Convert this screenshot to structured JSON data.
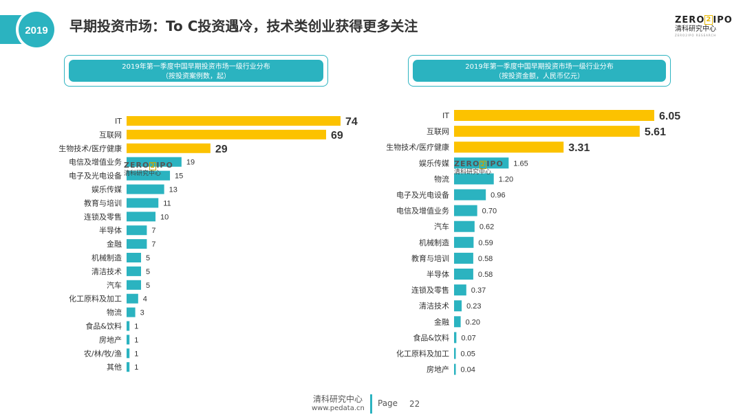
{
  "header": {
    "year": "2019",
    "title": "早期投资市场：To C投资遇冷，技术类创业获得更多关注"
  },
  "logo": {
    "left": "ZERO",
    "mark": "2",
    "right": "IPO",
    "cn": "清科研究中心",
    "en": "ZERO2IPO RESEARCH"
  },
  "watermark": {
    "left": "ZERO",
    "mark": "2",
    "right": "IPO",
    "cn": "清科研究中心"
  },
  "colors": {
    "teal": "#2bb3c0",
    "gold": "#fcc200"
  },
  "chart_data": [
    {
      "type": "bar",
      "orientation": "horizontal",
      "title": "2019年第一季度中国早期投资市场一级行业分布",
      "subtitle": "（按投资案例数，起）",
      "categories": [
        "IT",
        "互联网",
        "生物技术/医疗健康",
        "电信及增值业务",
        "电子及光电设备",
        "娱乐传媒",
        "教育与培训",
        "连锁及零售",
        "半导体",
        "金融",
        "机械制造",
        "清洁技术",
        "汽车",
        "化工原料及加工",
        "物流",
        "食品&饮料",
        "房地产",
        "农/林/牧/渔",
        "其他"
      ],
      "values": [
        74,
        69,
        29,
        19,
        15,
        13,
        11,
        10,
        7,
        7,
        5,
        5,
        5,
        4,
        3,
        1,
        1,
        1,
        1
      ],
      "value_labels": [
        "74",
        "69",
        "29",
        "19",
        "15",
        "13",
        "11",
        "10",
        "7",
        "7",
        "5",
        "5",
        "5",
        "4",
        "3",
        "1",
        "1",
        "1",
        "1"
      ],
      "highlight_top": 3,
      "xlim": [
        0,
        74
      ]
    },
    {
      "type": "bar",
      "orientation": "horizontal",
      "title": "2019年第一季度中国早期投资市场一级行业分布",
      "subtitle": "（按投资金额，人民币亿元）",
      "categories": [
        "IT",
        "互联网",
        "生物技术/医疗健康",
        "娱乐传媒",
        "物流",
        "电子及光电设备",
        "电信及增值业务",
        "汽车",
        "机械制造",
        "教育与培训",
        "半导体",
        "连锁及零售",
        "清洁技术",
        "金融",
        "食品&饮料",
        "化工原料及加工",
        "房地产"
      ],
      "values": [
        6.05,
        5.61,
        3.31,
        1.65,
        1.2,
        0.96,
        0.7,
        0.62,
        0.59,
        0.58,
        0.58,
        0.37,
        0.23,
        0.2,
        0.07,
        0.05,
        0.04
      ],
      "value_labels": [
        "6.05",
        "5.61",
        "3.31",
        "1.65",
        "1.20",
        "0.96",
        "0.70",
        "0.62",
        "0.59",
        "0.58",
        "0.58",
        "0.37",
        "0.23",
        "0.20",
        "0.07",
        "0.05",
        "0.04"
      ],
      "highlight_top": 3,
      "xlim": [
        0,
        6.05
      ]
    }
  ],
  "footer": {
    "org": "清科研究中心",
    "url": "www.pedata.cn",
    "page_label": "Page",
    "page_number": "22"
  }
}
